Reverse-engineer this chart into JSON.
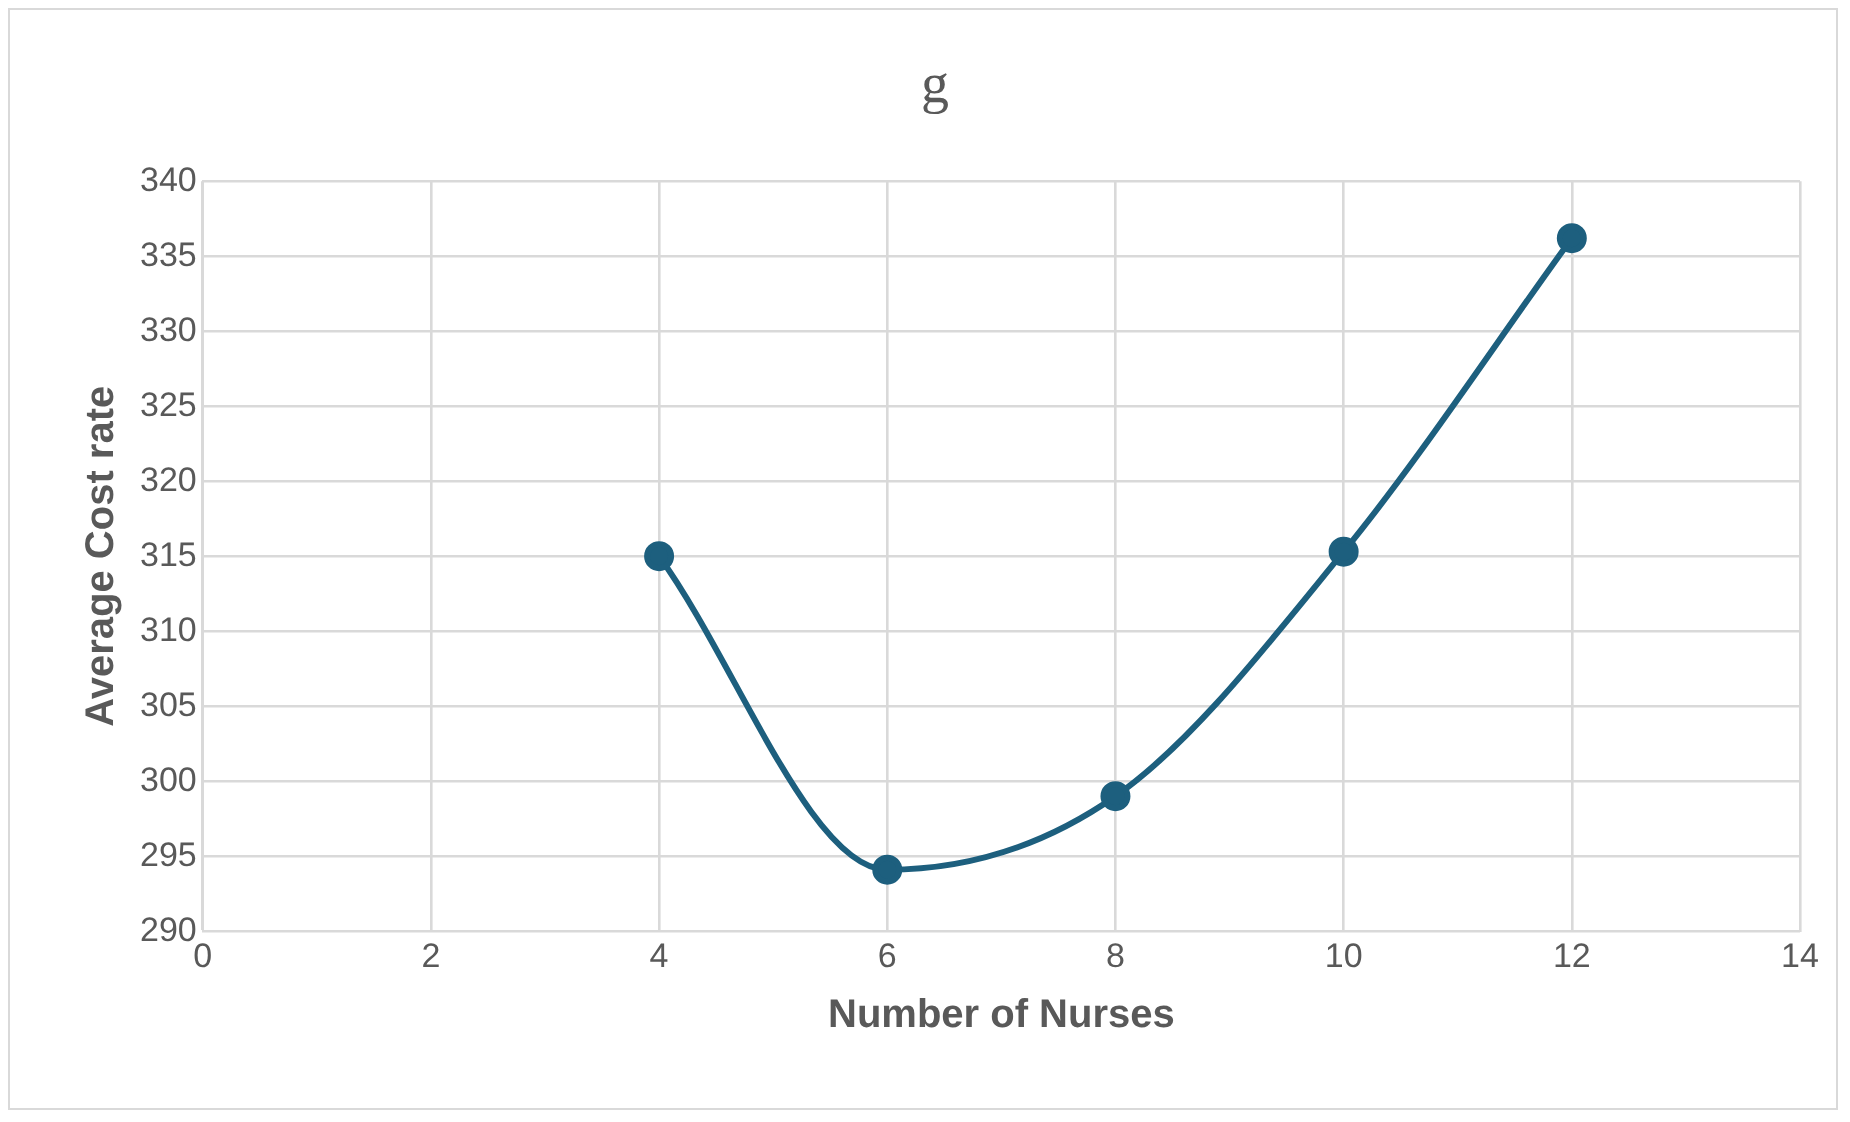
{
  "chart_data": {
    "type": "line",
    "title": "g",
    "xlabel": "Number of Nurses",
    "ylabel": "Average Cost rate",
    "x": [
      4,
      6,
      8,
      10,
      12
    ],
    "series": [
      {
        "color": "#1d5f7e",
        "values": [
          315,
          294.1,
          299,
          315.3,
          336.2
        ]
      }
    ],
    "xlim": [
      0,
      14
    ],
    "xticks": [
      0,
      2,
      4,
      6,
      8,
      10,
      12,
      14
    ],
    "ylim": [
      290,
      340
    ],
    "yticks": [
      290,
      295,
      300,
      305,
      310,
      315,
      320,
      325,
      330,
      335,
      340
    ],
    "grid": true,
    "legend": false,
    "marker": "circle",
    "line_style": "solid"
  }
}
